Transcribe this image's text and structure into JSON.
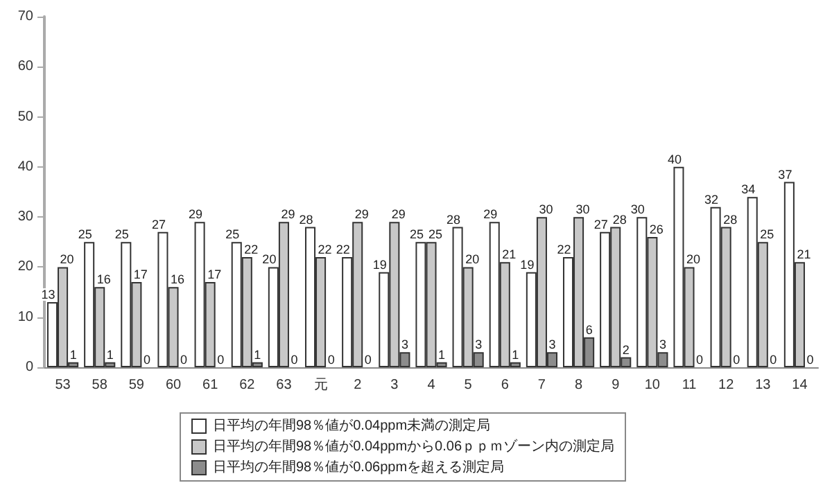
{
  "chart_data": {
    "type": "bar",
    "categories": [
      "53",
      "58",
      "59",
      "60",
      "61",
      "62",
      "63",
      "元",
      "2",
      "3",
      "4",
      "5",
      "6",
      "7",
      "8",
      "9",
      "10",
      "11",
      "12",
      "13",
      "14"
    ],
    "series": [
      {
        "name": "日平均の年間98％値が0.04ppm未満の測定局",
        "color": "#ffffff",
        "values": [
          13,
          25,
          25,
          27,
          29,
          25,
          20,
          28,
          22,
          19,
          25,
          28,
          29,
          19,
          22,
          27,
          30,
          40,
          32,
          34,
          37
        ]
      },
      {
        "name": "日平均の年間98％値が0.04ppmから0.06ｐｐｍゾーン内の測定局",
        "color": "#c8c8c8",
        "values": [
          20,
          16,
          17,
          16,
          17,
          22,
          29,
          22,
          29,
          29,
          25,
          20,
          21,
          30,
          30,
          28,
          26,
          20,
          28,
          25,
          21
        ]
      },
      {
        "name": "日平均の年間98％値が0.06ppmを超える測定局",
        "color": "#8c8c8c",
        "values": [
          1,
          1,
          0,
          0,
          0,
          1,
          0,
          0,
          0,
          3,
          1,
          3,
          1,
          3,
          6,
          2,
          3,
          0,
          0,
          0,
          0
        ]
      }
    ],
    "ylim": [
      0,
      70
    ],
    "yticks": [
      0,
      10,
      20,
      30,
      40,
      50,
      60,
      70
    ],
    "grid": false,
    "legend": "bottom",
    "data_labels": true
  }
}
